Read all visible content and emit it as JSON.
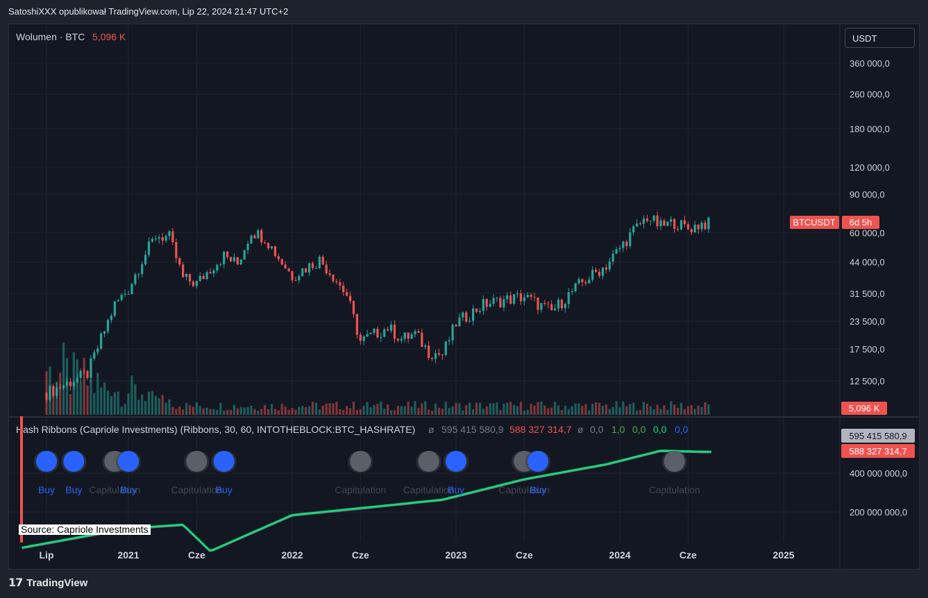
{
  "header": {
    "publish_line": "SatoshiXXX opublikował TradingView.com, Lip 22, 2024 21:47 UTC+2"
  },
  "currency": "USDT",
  "colors": {
    "up": "#26a69a",
    "down": "#ef5350",
    "blue": "#2962ff",
    "green_ribbon": "#00e676",
    "grey_ribbon": "#787b86",
    "bg": "#131722"
  },
  "volume_legend": {
    "name": "Wolumen · BTC",
    "value": "5,096 K"
  },
  "price_badge": {
    "symbol": "BTCUSDT",
    "countdown": "6d 5h"
  },
  "volume_badge": "5,096 K",
  "hash_legend": {
    "name": "Hash Ribbons (Capriole Investments) (Ribbons, 30, 60, INTOTHEBLOCK:BTC_HASHRATE)",
    "sep1": "ø",
    "v1": "595 415 580,9",
    "v2": "588 327 314,7",
    "sep2": "ø",
    "v3": "0,0",
    "v4": "1,0",
    "v5": "0,0",
    "v6": "0,0",
    "v7": "0,0"
  },
  "hash_badges": {
    "top": "595 415 580,9",
    "bottom": "588 327 314,7"
  },
  "source_label": "Source: Capriole Investments",
  "footer": {
    "brand": "TradingView"
  },
  "chart_data": {
    "type": "candlestick",
    "symbol": "BTCUSDT",
    "scale": "log",
    "x_ticks": [
      "Lip",
      "2021",
      "Cze",
      "2022",
      "Cze",
      "2023",
      "Cze",
      "2024",
      "Cze",
      "2025"
    ],
    "price_ticks": [
      "360 000,0",
      "260 000,0",
      "180 000,0",
      "120 000,0",
      "90 000,0",
      "60 000,0",
      "44 000,0",
      "31 500,0",
      "23 500,0",
      "17 500,0",
      "12 500,0"
    ],
    "hash_ticks": [
      "400 000 000,0",
      "200 000 000,0"
    ],
    "price_series": [
      {
        "date": "2020-07",
        "close": 11000
      },
      {
        "date": "2020-10",
        "close": 13500
      },
      {
        "date": "2020-12",
        "close": 28000
      },
      {
        "date": "2021-01",
        "close": 33000
      },
      {
        "date": "2021-02",
        "close": 45000
      },
      {
        "date": "2021-03",
        "close": 58000
      },
      {
        "date": "2021-04",
        "close": 57000
      },
      {
        "date": "2021-05",
        "close": 37000
      },
      {
        "date": "2021-06",
        "close": 35000
      },
      {
        "date": "2021-07",
        "close": 41000
      },
      {
        "date": "2021-08",
        "close": 47000
      },
      {
        "date": "2021-09",
        "close": 43000
      },
      {
        "date": "2021-10",
        "close": 61000
      },
      {
        "date": "2021-11",
        "close": 57000
      },
      {
        "date": "2021-12",
        "close": 46000
      },
      {
        "date": "2022-01",
        "close": 38000
      },
      {
        "date": "2022-03",
        "close": 45000
      },
      {
        "date": "2022-04",
        "close": 38000
      },
      {
        "date": "2022-05",
        "close": 31000
      },
      {
        "date": "2022-06",
        "close": 19000
      },
      {
        "date": "2022-08",
        "close": 22000
      },
      {
        "date": "2022-09",
        "close": 19500
      },
      {
        "date": "2022-10",
        "close": 20500
      },
      {
        "date": "2022-11",
        "close": 17000
      },
      {
        "date": "2022-12",
        "close": 16500
      },
      {
        "date": "2023-01",
        "close": 23000
      },
      {
        "date": "2023-03",
        "close": 28000
      },
      {
        "date": "2023-04",
        "close": 29000
      },
      {
        "date": "2023-06",
        "close": 30500
      },
      {
        "date": "2023-08",
        "close": 26000
      },
      {
        "date": "2023-10",
        "close": 34500
      },
      {
        "date": "2023-12",
        "close": 42500
      },
      {
        "date": "2024-02",
        "close": 61000
      },
      {
        "date": "2024-03",
        "close": 71000
      },
      {
        "date": "2024-04",
        "close": 64000
      },
      {
        "date": "2024-05",
        "close": 67000
      },
      {
        "date": "2024-06",
        "close": 62500
      },
      {
        "date": "2024-07",
        "close": 66000
      }
    ],
    "hash_series": [
      {
        "date": "2020-07",
        "value": 115000000
      },
      {
        "date": "2021-01",
        "value": 150000000
      },
      {
        "date": "2021-05",
        "value": 160000000
      },
      {
        "date": "2021-07",
        "value": 100000000
      },
      {
        "date": "2022-01",
        "value": 190000000
      },
      {
        "date": "2022-06",
        "value": 215000000
      },
      {
        "date": "2022-12",
        "value": 250000000
      },
      {
        "date": "2023-06",
        "value": 360000000
      },
      {
        "date": "2023-12",
        "value": 470000000
      },
      {
        "date": "2024-04",
        "value": 600000000
      },
      {
        "date": "2024-07",
        "value": 588000000
      }
    ],
    "signals": [
      {
        "date": "2020-07",
        "label": "Buy"
      },
      {
        "date": "2020-09",
        "label": "Buy"
      },
      {
        "date": "2020-12",
        "label": "Capitulation"
      },
      {
        "date": "2021-01",
        "label": "Buy"
      },
      {
        "date": "2021-06",
        "label": "Capitulation"
      },
      {
        "date": "2021-08",
        "label": "Buy"
      },
      {
        "date": "2022-06",
        "label": "Capitulation"
      },
      {
        "date": "2022-11",
        "label": "Capitulation"
      },
      {
        "date": "2023-01",
        "label": "Buy"
      },
      {
        "date": "2023-06",
        "label": "Capitulation"
      },
      {
        "date": "2023-07",
        "label": "Buy"
      },
      {
        "date": "2024-05",
        "label": "Capitulation"
      }
    ]
  }
}
